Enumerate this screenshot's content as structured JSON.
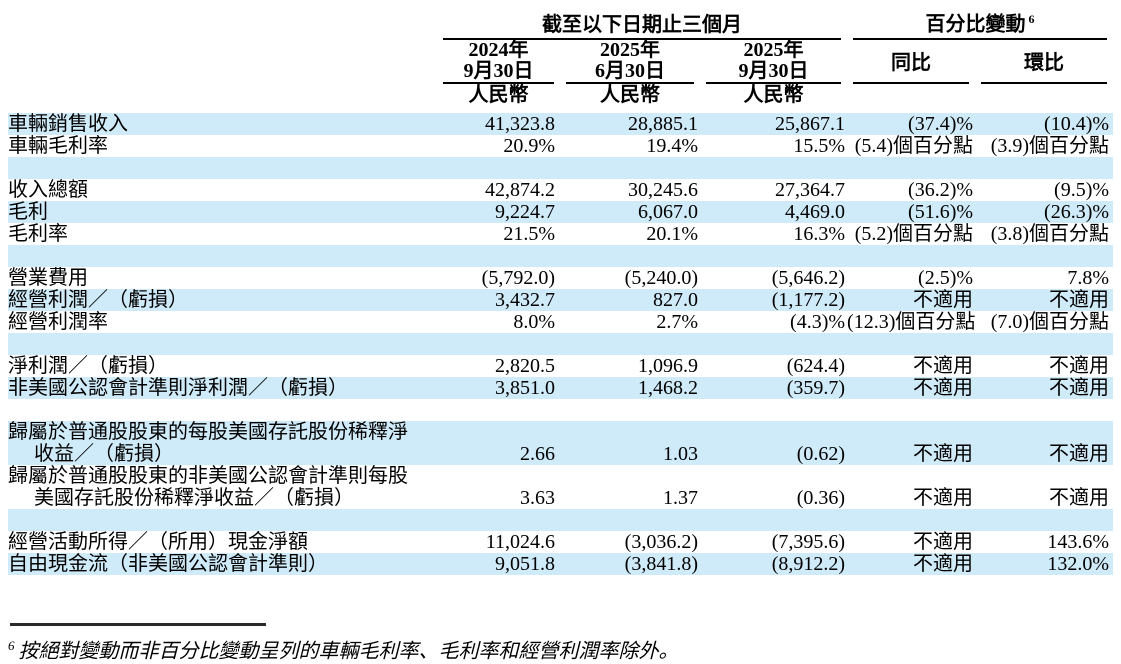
{
  "header": {
    "period_group": "截至以下日期止三個月",
    "change_group": "百分比變動",
    "change_group_sup": "6",
    "columns": [
      {
        "line1": "2024年",
        "line2": "9月30日"
      },
      {
        "line1": "2025年",
        "line2": "6月30日"
      },
      {
        "line1": "2025年",
        "line2": "9月30日"
      }
    ],
    "yoy": "同比",
    "qoq": "環比",
    "currency": [
      "人民幣",
      "人民幣",
      "人民幣"
    ]
  },
  "table": {
    "rows": [
      {
        "type": "data",
        "bg": "blue",
        "label": [
          "車輛銷售收入"
        ],
        "values": [
          "41,323.8",
          "28,885.1",
          "25,867.1",
          "(37.4)%",
          "(10.4)%"
        ]
      },
      {
        "type": "data",
        "bg": "white",
        "label": [
          "車輛毛利率"
        ],
        "values": [
          "20.9%",
          "19.4%",
          "15.5%",
          "(5.4)個百分點",
          "(3.9)個百分點"
        ]
      },
      {
        "type": "spacer",
        "bg": "blue"
      },
      {
        "type": "data",
        "bg": "white",
        "label": [
          "收入總額"
        ],
        "values": [
          "42,874.2",
          "30,245.6",
          "27,364.7",
          "(36.2)%",
          "(9.5)%"
        ]
      },
      {
        "type": "data",
        "bg": "blue",
        "label": [
          "毛利"
        ],
        "values": [
          "9,224.7",
          "6,067.0",
          "4,469.0",
          "(51.6)%",
          "(26.3)%"
        ]
      },
      {
        "type": "data",
        "bg": "white",
        "label": [
          "毛利率"
        ],
        "values": [
          "21.5%",
          "20.1%",
          "16.3%",
          "(5.2)個百分點",
          "(3.8)個百分點"
        ]
      },
      {
        "type": "spacer",
        "bg": "blue"
      },
      {
        "type": "data",
        "bg": "white",
        "label": [
          "營業費用"
        ],
        "values": [
          "(5,792.0)",
          "(5,240.0)",
          "(5,646.2)",
          "(2.5)%",
          "7.8%"
        ]
      },
      {
        "type": "data",
        "bg": "blue",
        "label": [
          "經營利潤／（虧損）"
        ],
        "values": [
          "3,432.7",
          "827.0",
          "(1,177.2)",
          "不適用",
          "不適用"
        ]
      },
      {
        "type": "data",
        "bg": "white",
        "label": [
          "經營利潤率"
        ],
        "values": [
          "8.0%",
          "2.7%",
          "(4.3)%",
          "(12.3)個百分點",
          "(7.0)個百分點"
        ]
      },
      {
        "type": "spacer",
        "bg": "blue"
      },
      {
        "type": "data",
        "bg": "white",
        "label": [
          "淨利潤／（虧損）"
        ],
        "values": [
          "2,820.5",
          "1,096.9",
          "(624.4)",
          "不適用",
          "不適用"
        ]
      },
      {
        "type": "data",
        "bg": "blue",
        "label": [
          "非美國公認會計準則淨利潤／（虧損）"
        ],
        "values": [
          "3,851.0",
          "1,468.2",
          "(359.7)",
          "不適用",
          "不適用"
        ]
      },
      {
        "type": "spacer",
        "bg": "white"
      },
      {
        "type": "data",
        "bg": "blue",
        "label": [
          "歸屬於普通股股東的每股美國存託股份稀釋淨",
          "收益／（虧損）"
        ],
        "values": [
          "2.66",
          "1.03",
          "(0.62)",
          "不適用",
          "不適用"
        ]
      },
      {
        "type": "data",
        "bg": "white",
        "label": [
          "歸屬於普通股股東的非美國公認會計準則每股",
          "美國存託股份稀釋淨收益／（虧損）"
        ],
        "values": [
          "3.63",
          "1.37",
          "(0.36)",
          "不適用",
          "不適用"
        ]
      },
      {
        "type": "spacer",
        "bg": "blue"
      },
      {
        "type": "data",
        "bg": "white",
        "label": [
          "經營活動所得／（所用）現金淨額"
        ],
        "values": [
          "11,024.6",
          "(3,036.2)",
          "(7,395.6)",
          "不適用",
          "143.6%"
        ]
      },
      {
        "type": "data",
        "bg": "blue",
        "label": [
          "自由現金流（非美國公認會計準則）"
        ],
        "values": [
          "9,051.8",
          "(3,841.8)",
          "(8,912.2)",
          "不適用",
          "132.0%"
        ]
      }
    ]
  },
  "footnote": {
    "sup": "6",
    "text": "按絕對變動而非百分比變動呈列的車輛毛利率、毛利率和經營利潤率除外。"
  },
  "colors": {
    "row_highlight": "#cfeaf8",
    "text": "#000000"
  }
}
